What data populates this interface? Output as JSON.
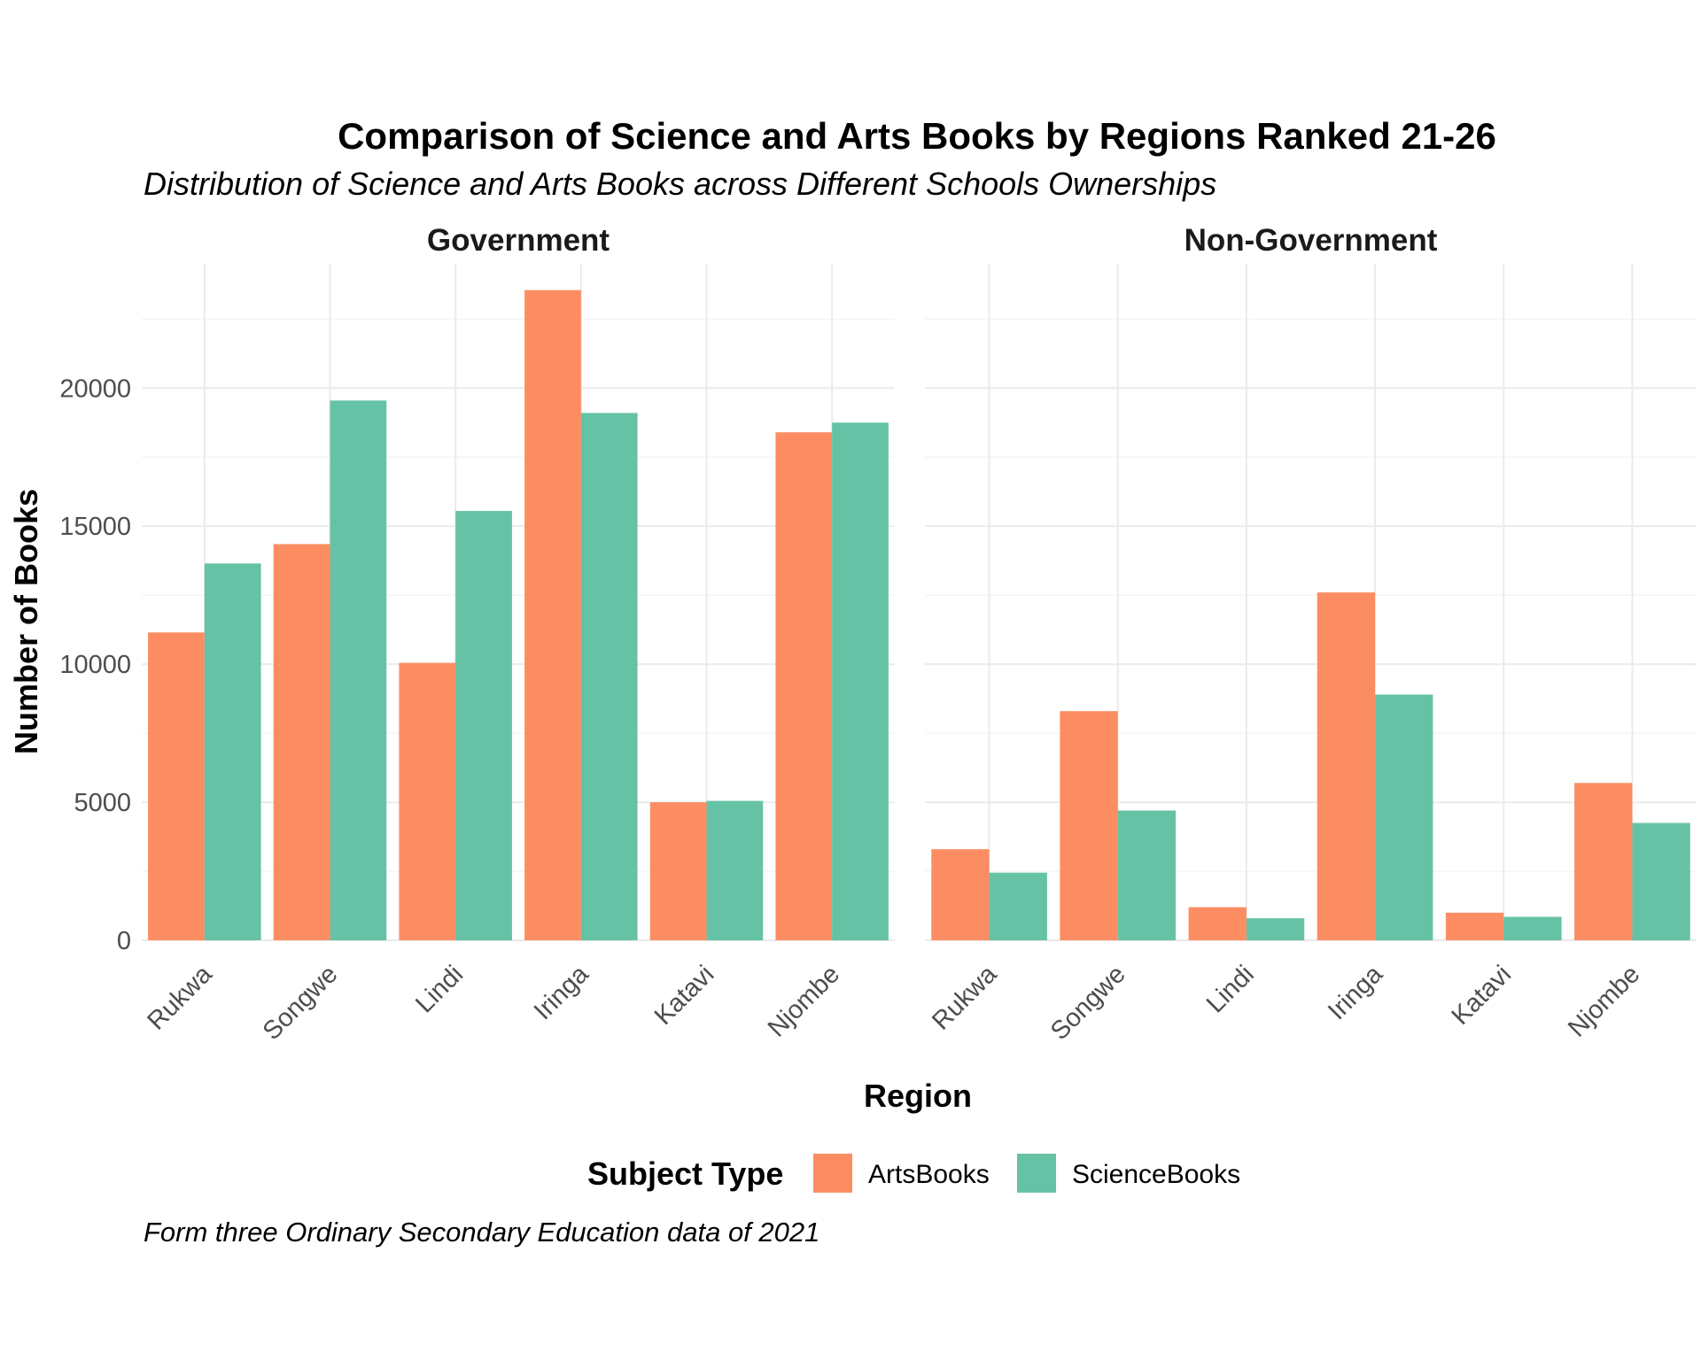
{
  "chart_data": {
    "type": "bar",
    "title": "Comparison of Science and Arts Books by Regions Ranked 21-26",
    "subtitle": "Distribution of Science and Arts Books across Different Schools Ownerships",
    "caption": "Form three Ordinary Secondary Education data of 2021",
    "xlabel": "Region",
    "ylabel": "Number of Books",
    "ylim": [
      0,
      24500
    ],
    "yticks": [
      0,
      5000,
      10000,
      15000,
      20000
    ],
    "ytick_labels": [
      "0",
      "5000",
      "10000",
      "15000",
      "20000"
    ],
    "grid": true,
    "legend": {
      "title": "Subject Type",
      "position": "bottom",
      "entries": [
        "ArtsBooks",
        "ScienceBooks"
      ]
    },
    "colors": {
      "ArtsBooks": "#fc8d62",
      "ScienceBooks": "#66c2a5"
    },
    "categories": [
      "Rukwa",
      "Songwe",
      "Lindi",
      "Iringa",
      "Katavi",
      "Njombe"
    ],
    "facets": [
      {
        "name": "Government",
        "series": [
          {
            "name": "ArtsBooks",
            "values": [
              11150,
              14350,
              10050,
              23550,
              5000,
              18400
            ]
          },
          {
            "name": "ScienceBooks",
            "values": [
              13650,
              19550,
              15550,
              19100,
              5050,
              18750
            ]
          }
        ]
      },
      {
        "name": "Non-Government",
        "series": [
          {
            "name": "ArtsBooks",
            "values": [
              3300,
              8300,
              1200,
              12600,
              1000,
              5700
            ]
          },
          {
            "name": "ScienceBooks",
            "values": [
              2450,
              4700,
              800,
              8900,
              850,
              4250
            ]
          }
        ]
      }
    ]
  }
}
